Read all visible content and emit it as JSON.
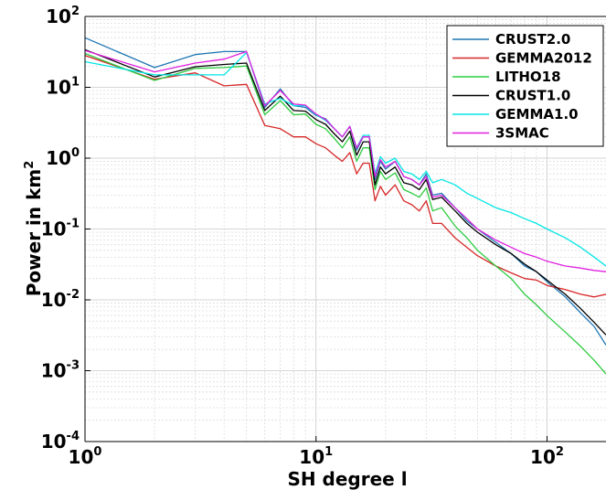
{
  "chart_data": {
    "type": "line",
    "title": "",
    "xlabel": "SH degree l",
    "ylabel": "Power in km",
    "ylabel_sup": "2",
    "xscale": "log",
    "yscale": "log",
    "xlim": [
      1,
      180
    ],
    "ylim": [
      0.0001,
      100
    ],
    "grid": true,
    "legend_position": "top-right",
    "x_ticks": [
      {
        "value": 1,
        "base": "10",
        "exp": "0"
      },
      {
        "value": 10,
        "base": "10",
        "exp": "1"
      },
      {
        "value": 100,
        "base": "10",
        "exp": "2"
      }
    ],
    "y_ticks": [
      {
        "value": 100,
        "base": "10",
        "exp": "2"
      },
      {
        "value": 10,
        "base": "10",
        "exp": "1"
      },
      {
        "value": 1,
        "base": "10",
        "exp": "0"
      },
      {
        "value": 0.1,
        "base": "10",
        "exp": "-1"
      },
      {
        "value": 0.01,
        "base": "10",
        "exp": "-2"
      },
      {
        "value": 0.001,
        "base": "10",
        "exp": "-3"
      },
      {
        "value": 0.0001,
        "base": "10",
        "exp": "-4"
      }
    ],
    "series": [
      {
        "name": "CRUST2.0",
        "color": "#1f77b4",
        "points": [
          [
            1,
            50
          ],
          [
            2,
            19
          ],
          [
            3,
            29
          ],
          [
            4,
            32
          ],
          [
            5,
            32
          ],
          [
            6,
            5.2
          ],
          [
            7,
            9.5
          ],
          [
            8,
            5.5
          ],
          [
            9,
            5.2
          ],
          [
            10,
            4
          ],
          [
            11,
            3.6
          ],
          [
            12,
            2.6
          ],
          [
            13,
            2
          ],
          [
            14,
            2.8
          ],
          [
            15,
            1.3
          ],
          [
            16,
            2
          ],
          [
            17,
            2
          ],
          [
            18,
            0.5
          ],
          [
            19,
            0.9
          ],
          [
            20,
            0.7
          ],
          [
            22,
            0.9
          ],
          [
            24,
            0.55
          ],
          [
            26,
            0.5
          ],
          [
            28,
            0.42
          ],
          [
            30,
            0.6
          ],
          [
            32,
            0.3
          ],
          [
            35,
            0.32
          ],
          [
            40,
            0.2
          ],
          [
            45,
            0.13
          ],
          [
            50,
            0.1
          ],
          [
            60,
            0.065
          ],
          [
            70,
            0.045
          ],
          [
            80,
            0.03
          ],
          [
            90,
            0.025
          ],
          [
            100,
            0.018
          ],
          [
            120,
            0.011
          ],
          [
            140,
            0.0065
          ],
          [
            160,
            0.0042
          ],
          [
            180,
            0.0023
          ]
        ]
      },
      {
        "name": "GEMMA2012",
        "color": "#d62728",
        "points": [
          [
            1,
            28
          ],
          [
            2,
            13
          ],
          [
            3,
            16
          ],
          [
            4,
            10.5
          ],
          [
            5,
            11
          ],
          [
            6,
            2.9
          ],
          [
            7,
            2.6
          ],
          [
            8,
            2
          ],
          [
            9,
            2
          ],
          [
            10,
            1.6
          ],
          [
            11,
            1.4
          ],
          [
            12,
            1.1
          ],
          [
            13,
            0.9
          ],
          [
            14,
            1.2
          ],
          [
            15,
            0.6
          ],
          [
            16,
            0.85
          ],
          [
            17,
            0.85
          ],
          [
            18,
            0.25
          ],
          [
            19,
            0.4
          ],
          [
            20,
            0.3
          ],
          [
            22,
            0.42
          ],
          [
            24,
            0.25
          ],
          [
            26,
            0.22
          ],
          [
            28,
            0.18
          ],
          [
            30,
            0.25
          ],
          [
            32,
            0.12
          ],
          [
            35,
            0.12
          ],
          [
            40,
            0.075
          ],
          [
            45,
            0.055
          ],
          [
            50,
            0.042
          ],
          [
            60,
            0.03
          ],
          [
            70,
            0.024
          ],
          [
            80,
            0.02
          ],
          [
            90,
            0.019
          ],
          [
            100,
            0.016
          ],
          [
            120,
            0.014
          ],
          [
            140,
            0.012
          ],
          [
            160,
            0.011
          ],
          [
            180,
            0.012
          ]
        ]
      },
      {
        "name": "LITHO18",
        "color": "#2ecc40",
        "points": [
          [
            1,
            30
          ],
          [
            2,
            12.5
          ],
          [
            3,
            18.5
          ],
          [
            4,
            19
          ],
          [
            5,
            20
          ],
          [
            6,
            4.1
          ],
          [
            7,
            6.5
          ],
          [
            8,
            4.1
          ],
          [
            9,
            4.2
          ],
          [
            10,
            3
          ],
          [
            11,
            2.6
          ],
          [
            12,
            1.9
          ],
          [
            13,
            1.4
          ],
          [
            14,
            2
          ],
          [
            15,
            0.9
          ],
          [
            16,
            1.4
          ],
          [
            17,
            1.4
          ],
          [
            18,
            0.36
          ],
          [
            19,
            0.65
          ],
          [
            20,
            0.5
          ],
          [
            22,
            0.62
          ],
          [
            24,
            0.36
          ],
          [
            26,
            0.32
          ],
          [
            28,
            0.28
          ],
          [
            30,
            0.38
          ],
          [
            32,
            0.18
          ],
          [
            35,
            0.2
          ],
          [
            40,
            0.11
          ],
          [
            45,
            0.075
          ],
          [
            50,
            0.05
          ],
          [
            60,
            0.03
          ],
          [
            70,
            0.02
          ],
          [
            80,
            0.012
          ],
          [
            90,
            0.0085
          ],
          [
            100,
            0.006
          ],
          [
            120,
            0.0035
          ],
          [
            140,
            0.0022
          ],
          [
            160,
            0.0014
          ],
          [
            180,
            0.0009
          ]
        ]
      },
      {
        "name": "CRUST1.0",
        "color": "#000000",
        "points": [
          [
            1,
            34
          ],
          [
            2,
            14
          ],
          [
            3,
            19.5
          ],
          [
            4,
            21
          ],
          [
            5,
            22
          ],
          [
            6,
            4.7
          ],
          [
            7,
            7.5
          ],
          [
            8,
            4.7
          ],
          [
            9,
            4.6
          ],
          [
            10,
            3.5
          ],
          [
            11,
            3
          ],
          [
            12,
            2.2
          ],
          [
            13,
            1.7
          ],
          [
            14,
            2.4
          ],
          [
            15,
            1.1
          ],
          [
            16,
            1.7
          ],
          [
            17,
            1.7
          ],
          [
            18,
            0.42
          ],
          [
            19,
            0.75
          ],
          [
            20,
            0.6
          ],
          [
            22,
            0.75
          ],
          [
            24,
            0.45
          ],
          [
            26,
            0.42
          ],
          [
            28,
            0.36
          ],
          [
            30,
            0.5
          ],
          [
            32,
            0.26
          ],
          [
            35,
            0.28
          ],
          [
            40,
            0.18
          ],
          [
            45,
            0.12
          ],
          [
            50,
            0.09
          ],
          [
            60,
            0.06
          ],
          [
            70,
            0.045
          ],
          [
            80,
            0.032
          ],
          [
            90,
            0.025
          ],
          [
            100,
            0.019
          ],
          [
            120,
            0.012
          ],
          [
            140,
            0.0075
          ],
          [
            160,
            0.0048
          ],
          [
            180,
            0.0032
          ]
        ]
      },
      {
        "name": "GEMMA1.0",
        "color": "#00e5e5",
        "points": [
          [
            1,
            23
          ],
          [
            2,
            15
          ],
          [
            3,
            15
          ],
          [
            4,
            15
          ],
          [
            5,
            31
          ],
          [
            6,
            5.8
          ],
          [
            7,
            7
          ],
          [
            8,
            5.5
          ],
          [
            9,
            5.5
          ],
          [
            10,
            4.1
          ],
          [
            11,
            3.4
          ],
          [
            12,
            2.6
          ],
          [
            13,
            2
          ],
          [
            14,
            2.8
          ],
          [
            15,
            1.4
          ],
          [
            16,
            2.1
          ],
          [
            17,
            2.1
          ],
          [
            18,
            0.6
          ],
          [
            19,
            1.05
          ],
          [
            20,
            0.85
          ],
          [
            22,
            1
          ],
          [
            24,
            0.65
          ],
          [
            26,
            0.6
          ],
          [
            28,
            0.5
          ],
          [
            30,
            0.65
          ],
          [
            32,
            0.45
          ],
          [
            35,
            0.5
          ],
          [
            40,
            0.42
          ],
          [
            45,
            0.32
          ],
          [
            50,
            0.27
          ],
          [
            60,
            0.2
          ],
          [
            70,
            0.17
          ],
          [
            80,
            0.14
          ],
          [
            90,
            0.12
          ],
          [
            100,
            0.1
          ],
          [
            120,
            0.075
          ],
          [
            140,
            0.055
          ],
          [
            160,
            0.04
          ],
          [
            180,
            0.03
          ]
        ]
      },
      {
        "name": "3SMAC",
        "color": "#e020e0",
        "points": [
          [
            1,
            33
          ],
          [
            2,
            16.5
          ],
          [
            3,
            22
          ],
          [
            4,
            25
          ],
          [
            5,
            32
          ],
          [
            6,
            5.5
          ],
          [
            7,
            9
          ],
          [
            8,
            5.8
          ],
          [
            9,
            5.6
          ],
          [
            10,
            4.2
          ],
          [
            11,
            3.5
          ],
          [
            12,
            2.6
          ],
          [
            13,
            2
          ],
          [
            14,
            2.8
          ],
          [
            15,
            1.4
          ],
          [
            16,
            2
          ],
          [
            17,
            2
          ],
          [
            18,
            0.55
          ],
          [
            19,
            0.95
          ],
          [
            20,
            0.75
          ],
          [
            22,
            0.9
          ],
          [
            24,
            0.55
          ],
          [
            26,
            0.5
          ],
          [
            28,
            0.42
          ],
          [
            30,
            0.55
          ],
          [
            32,
            0.28
          ],
          [
            35,
            0.3
          ],
          [
            40,
            0.2
          ],
          [
            45,
            0.14
          ],
          [
            50,
            0.1
          ],
          [
            60,
            0.07
          ],
          [
            70,
            0.055
          ],
          [
            80,
            0.045
          ],
          [
            90,
            0.04
          ],
          [
            100,
            0.035
          ],
          [
            120,
            0.03
          ],
          [
            140,
            0.028
          ],
          [
            160,
            0.026
          ],
          [
            180,
            0.025
          ]
        ]
      }
    ]
  }
}
